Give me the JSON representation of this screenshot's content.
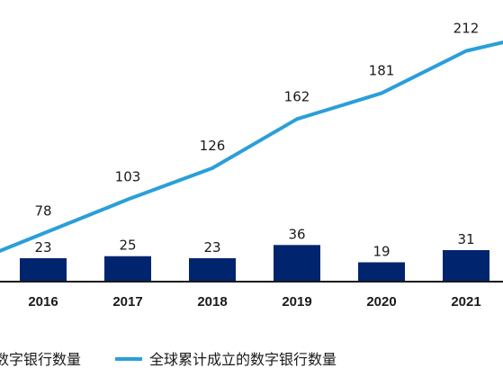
{
  "chart_data": {
    "type": "bar+line",
    "categories": [
      "2016",
      "2017",
      "2018",
      "2019",
      "2020",
      "2021"
    ],
    "series": [
      {
        "name": "全球每年新成立的数字银行数量",
        "visible_legend_text": "数字银行数量",
        "type": "bar",
        "color": "#00256e",
        "values": [
          23,
          25,
          23,
          36,
          19,
          31
        ]
      },
      {
        "name": "全球累计成立的数字银行数量",
        "type": "line",
        "color": "#2a9fd8",
        "values": [
          78,
          103,
          126,
          162,
          181,
          212
        ]
      }
    ],
    "legend_position": "bottom",
    "grid": false
  }
}
